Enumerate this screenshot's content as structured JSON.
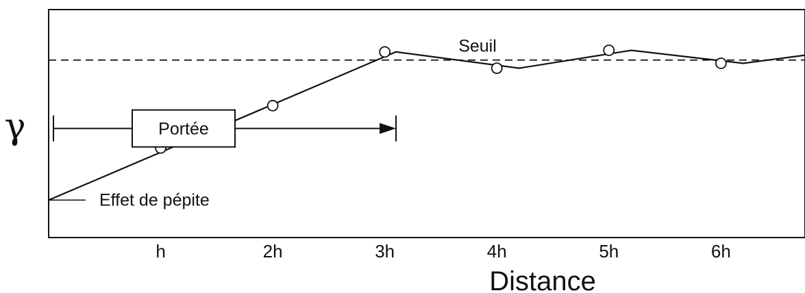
{
  "chart_data": {
    "type": "line",
    "title": "",
    "xlabel": "Distance",
    "ylabel": "γ",
    "xlim": [
      0,
      6.75
    ],
    "ylim": [
      0,
      1.4
    ],
    "x_ticks": [
      {
        "x": 1,
        "label": "h"
      },
      {
        "x": 2,
        "label": "2h"
      },
      {
        "x": 3,
        "label": "3h"
      },
      {
        "x": 4,
        "label": "4h"
      },
      {
        "x": 5,
        "label": "5h"
      },
      {
        "x": 6,
        "label": "6h"
      }
    ],
    "grid": false,
    "series": [
      {
        "x": [
          0,
          3.1,
          4.2,
          5.2,
          6.2,
          6.75
        ],
        "y": [
          0.23,
          1.14,
          1.04,
          1.15,
          1.07,
          1.12
        ],
        "marker": "none"
      },
      {
        "x": [
          1,
          2,
          3,
          4,
          5,
          6
        ],
        "y": [
          0.55,
          0.81,
          1.14,
          1.04,
          1.15,
          1.07
        ],
        "marker": "open-circle"
      }
    ],
    "threshold": {
      "y": 1.09,
      "style": "dashed",
      "label": "Seuil"
    },
    "annotations": {
      "range_label": "Portée",
      "range_x": [
        0,
        3.1
      ],
      "range_y": 0.67,
      "nugget_label": "Effet de pépite",
      "nugget_y": 0.23
    }
  },
  "colors": {
    "line": "#111111",
    "background": "#ffffff"
  }
}
